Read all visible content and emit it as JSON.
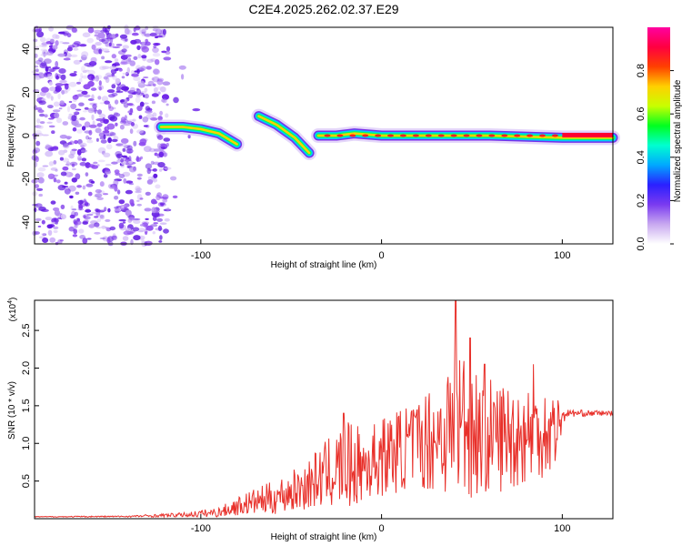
{
  "title": "C2E4.2025.262.02.37.E29",
  "chart_data": [
    {
      "type": "heatmap",
      "name": "spectrogram",
      "xlabel": "Height of straight line (km)",
      "ylabel": "Frequency (Hz)",
      "xlim": [
        -192,
        128
      ],
      "ylim": [
        -50,
        50
      ],
      "xticks": [
        -100,
        0,
        100
      ],
      "yticks": [
        40,
        20,
        0,
        -20,
        -40
      ],
      "colorbar": {
        "label": "Normalized spectral amplitude",
        "range": [
          0,
          1
        ],
        "ticks": [
          "0.0",
          "0.2",
          "0.4",
          "0.6",
          "0.8"
        ],
        "colors": [
          "#ffffff",
          "#c8a8f0",
          "#7a3af0",
          "#2a20ff",
          "#00a8ff",
          "#00ffd0",
          "#00ff20",
          "#c8ff00",
          "#ffd000",
          "#ff4000",
          "#ff0040",
          "#ff00a0"
        ]
      },
      "ridge": [
        {
          "x": -122,
          "y": 4
        },
        {
          "x": -110,
          "y": 4
        },
        {
          "x": -100,
          "y": 3
        },
        {
          "x": -90,
          "y": 1
        },
        {
          "x": -80,
          "y": -4
        },
        {
          "x": -68,
          "y": 9
        },
        {
          "x": -58,
          "y": 5
        },
        {
          "x": -48,
          "y": -1
        },
        {
          "x": -40,
          "y": -8
        },
        {
          "x": -35,
          "y": 0
        },
        {
          "x": -25,
          "y": 0
        },
        {
          "x": -15,
          "y": 1
        },
        {
          "x": 0,
          "y": 0
        },
        {
          "x": 30,
          "y": 0
        },
        {
          "x": 60,
          "y": 0
        },
        {
          "x": 100,
          "y": -1
        },
        {
          "x": 128,
          "y": -1
        }
      ]
    },
    {
      "type": "line",
      "name": "snr",
      "xlabel": "Height of straight line (km)",
      "ylabel": "SNR (10 * v/v)",
      "multiplier_label": "(x10",
      "multiplier_exp": "4",
      "xlim": [
        -192,
        128
      ],
      "ylim": [
        0,
        2.9
      ],
      "xticks": [
        -100,
        0,
        100
      ],
      "yticks": [
        0.5,
        1.0,
        1.5,
        2.0,
        2.5
      ],
      "color": "#e8302a",
      "envelope": [
        {
          "x": -192,
          "lo": 0.02,
          "hi": 0.03
        },
        {
          "x": -140,
          "lo": 0.02,
          "hi": 0.04
        },
        {
          "x": -110,
          "lo": 0.02,
          "hi": 0.08
        },
        {
          "x": -90,
          "lo": 0.02,
          "hi": 0.15
        },
        {
          "x": -75,
          "lo": 0.05,
          "hi": 0.35
        },
        {
          "x": -60,
          "lo": 0.05,
          "hi": 0.5
        },
        {
          "x": -45,
          "lo": 0.1,
          "hi": 0.7
        },
        {
          "x": -30,
          "lo": 0.15,
          "hi": 1.05
        },
        {
          "x": -20,
          "lo": 0.1,
          "hi": 1.3
        },
        {
          "x": -10,
          "lo": 0.2,
          "hi": 1.2
        },
        {
          "x": 0,
          "lo": 0.3,
          "hi": 1.35
        },
        {
          "x": 20,
          "lo": 0.4,
          "hi": 1.6
        },
        {
          "x": 35,
          "lo": 0.3,
          "hi": 2.0
        },
        {
          "x": 45,
          "lo": 0.25,
          "hi": 2.4
        },
        {
          "x": 55,
          "lo": 0.3,
          "hi": 1.9
        },
        {
          "x": 75,
          "lo": 0.4,
          "hi": 1.8
        },
        {
          "x": 95,
          "lo": 0.6,
          "hi": 1.75
        },
        {
          "x": 102,
          "lo": 1.35,
          "hi": 1.45
        },
        {
          "x": 128,
          "lo": 1.37,
          "hi": 1.43
        }
      ],
      "spikes": [
        {
          "x": 41,
          "y": 2.9
        },
        {
          "x": 49,
          "y": 2.4
        },
        {
          "x": -21,
          "y": 1.4
        },
        {
          "x": 57,
          "y": 2.05
        },
        {
          "x": 84,
          "y": 2.05
        }
      ]
    }
  ]
}
